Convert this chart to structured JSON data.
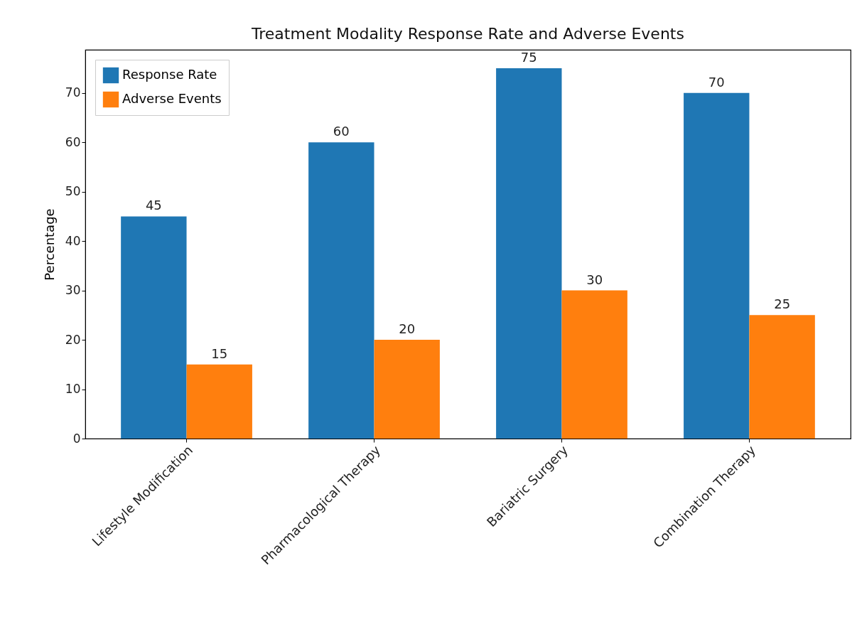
{
  "chart_data": {
    "type": "bar",
    "title": "Treatment Modality Response Rate and Adverse Events",
    "ylabel": "Percentage",
    "categories": [
      "Lifestyle Modification",
      "Pharmacological Therapy",
      "Bariatric Surgery",
      "Combination Therapy"
    ],
    "series": [
      {
        "name": "Response Rate",
        "color": "#1f77b4",
        "values": [
          45,
          60,
          75,
          70
        ]
      },
      {
        "name": "Adverse Events",
        "color": "#ff7f0e",
        "values": [
          15,
          20,
          30,
          25
        ]
      }
    ],
    "ylim": [
      0,
      78.75
    ],
    "yticks": [
      0,
      10,
      20,
      30,
      40,
      50,
      60,
      70
    ],
    "grid": false,
    "legend": "top left",
    "data_labels": true
  }
}
